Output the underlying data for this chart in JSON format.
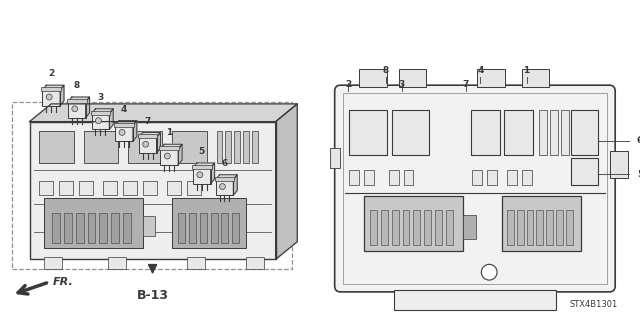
{
  "bg_color": "#ffffff",
  "line_color": "#3a3a3a",
  "gray1": "#c8c8c8",
  "gray2": "#b0b0b0",
  "gray3": "#e8e8e8",
  "part_number": "STX4B1301",
  "b13_label": "B-13",
  "fr_label": "FR."
}
